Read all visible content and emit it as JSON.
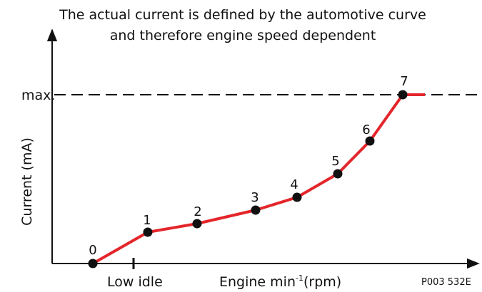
{
  "title": [
    "The actual current is defined by the automotive curve",
    "and therefore engine speed dependent"
  ],
  "y_axis": {
    "label": "Current (mA)",
    "max_label": "max."
  },
  "x_axis": {
    "tick_label": "Low idle",
    "label": "Engine min",
    "superscript": "-1",
    "unit": "(rpm)"
  },
  "points": [
    "0",
    "1",
    "2",
    "3",
    "4",
    "5",
    "6",
    "7"
  ],
  "code": "P003 532E"
}
